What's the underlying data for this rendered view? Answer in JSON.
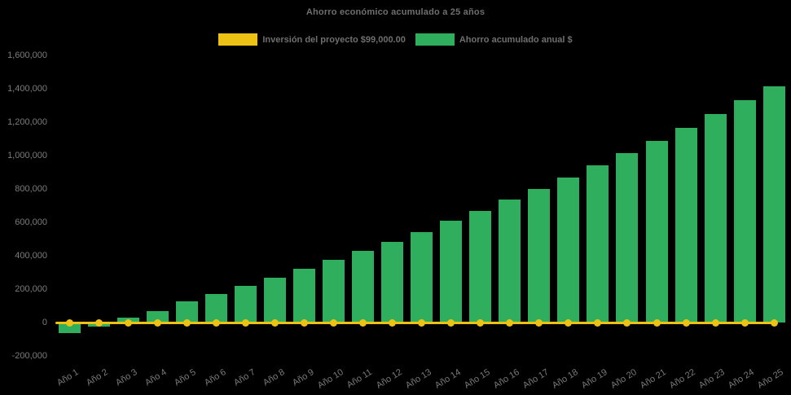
{
  "title": "Ahorro económico acumulado a 25 años",
  "colors": {
    "background": "#000000",
    "bar_green": "#2fae5e",
    "line_yellow": "#eec215",
    "axis_text": "#7c7c7c",
    "title_text": "#6f6f6f"
  },
  "legend": {
    "items": [
      {
        "id": "investment",
        "label": "Inversión del proyecto $99,000.00",
        "color": "#eec215"
      },
      {
        "id": "savings",
        "label": "Ahorro acumulado anual $",
        "color": "#2fae5e"
      }
    ]
  },
  "investment_amount_shown": "$99,000.00",
  "chart_data": {
    "type": "bar",
    "title": "Ahorro económico acumulado a 25 años",
    "xlabel": "",
    "ylabel": "",
    "ylim": [
      -200000,
      1600000
    ],
    "ytick_step": 200000,
    "grid": false,
    "legend_position": "top",
    "background": "black",
    "categories": [
      "Año 1",
      "Año 2",
      "Año 3",
      "Año 4",
      "Año 5",
      "Año 6",
      "Año 7",
      "Año 8",
      "Año 9",
      "Año 10",
      "Año 11",
      "Año 12",
      "Año 13",
      "Año 14",
      "Año 15",
      "Año 16",
      "Año 17",
      "Año 18",
      "Año 19",
      "Año 20",
      "Año 21",
      "Año 22",
      "Año 23",
      "Año 24",
      "Año 25"
    ],
    "yticks": [
      {
        "value": -200000,
        "label": "-200,000"
      },
      {
        "value": 0,
        "label": "0"
      },
      {
        "value": 200000,
        "label": "200,000"
      },
      {
        "value": 400000,
        "label": "400,000"
      },
      {
        "value": 600000,
        "label": "600,000"
      },
      {
        "value": 800000,
        "label": "800,000"
      },
      {
        "value": 1000000,
        "label": "1,000,000"
      },
      {
        "value": 1200000,
        "label": "1,200,000"
      },
      {
        "value": 1400000,
        "label": "1,400,000"
      },
      {
        "value": 1600000,
        "label": "1,600,000"
      }
    ],
    "series": [
      {
        "name": "Ahorro acumulado anual $",
        "type": "bar",
        "color": "#2fae5e",
        "values": [
          -65000,
          -25000,
          30000,
          70000,
          125000,
          170000,
          220000,
          268000,
          323000,
          378000,
          428000,
          485000,
          542000,
          612000,
          668000,
          738000,
          798000,
          868000,
          941000,
          1017000,
          1088000,
          1166000,
          1247000,
          1332000,
          1415000
        ]
      },
      {
        "name": "Inversión del proyecto $99,000.00",
        "type": "line",
        "marker": "circle",
        "color": "#eec215",
        "values": [
          0,
          0,
          0,
          0,
          0,
          0,
          0,
          0,
          0,
          0,
          0,
          0,
          0,
          0,
          0,
          0,
          0,
          0,
          0,
          0,
          0,
          0,
          0,
          0,
          0
        ]
      }
    ]
  }
}
